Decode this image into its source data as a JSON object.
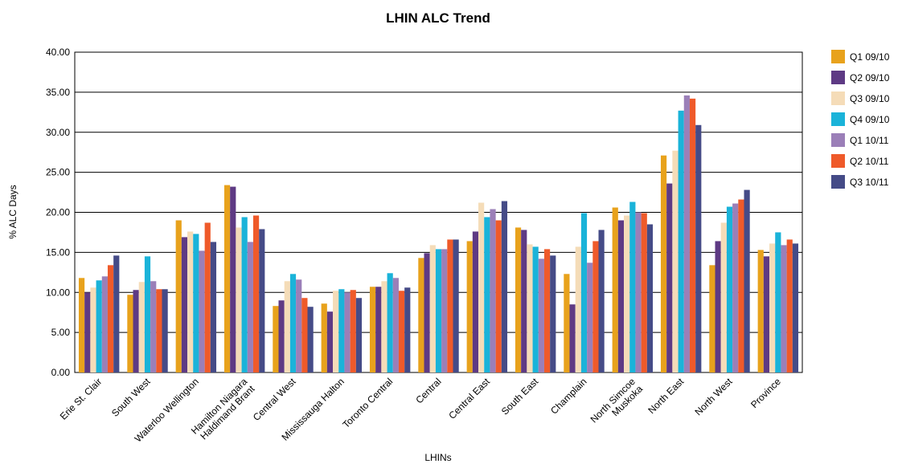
{
  "chart_data": {
    "type": "bar",
    "title": "LHIN ALC Trend",
    "x_label": "LHINs",
    "y_label": "% ALC Days",
    "categories": [
      "Erie St. Clair",
      "South West",
      "Waterloo Wellington",
      "Hamilton Niagara\nHaldimand Brant",
      "Central West",
      "Mississauga Halton",
      "Toronto Central",
      "Central",
      "Central East",
      "South East",
      "Champlain",
      "North Simcoe\nMuskoka",
      "North East",
      "North West",
      "Province"
    ],
    "series": [
      {
        "name": "Q1 09/10",
        "color": "#e8a21c",
        "values": [
          11.8,
          9.7,
          19.0,
          23.4,
          8.3,
          8.6,
          10.7,
          14.3,
          16.4,
          18.1,
          12.3,
          20.6,
          27.1,
          13.4,
          15.3
        ]
      },
      {
        "name": "Q2 09/10",
        "color": "#5e3a84",
        "values": [
          10.0,
          10.3,
          16.9,
          23.2,
          9.0,
          7.6,
          10.7,
          14.9,
          17.6,
          17.8,
          8.5,
          19.0,
          23.6,
          16.4,
          14.5
        ]
      },
      {
        "name": "Q3 09/10",
        "color": "#f5dcb8",
        "values": [
          10.6,
          11.3,
          17.6,
          18.1,
          11.4,
          10.2,
          11.4,
          15.9,
          21.2,
          16.0,
          15.7,
          19.6,
          27.7,
          18.7,
          16.1
        ]
      },
      {
        "name": "Q4 09/10",
        "color": "#1ab3d9",
        "values": [
          11.5,
          14.5,
          17.3,
          19.4,
          12.3,
          10.4,
          12.4,
          15.4,
          19.4,
          15.7,
          19.9,
          21.3,
          32.7,
          20.7,
          17.5
        ]
      },
      {
        "name": "Q1 10/11",
        "color": "#9b7fb8",
        "values": [
          12.0,
          11.4,
          15.2,
          16.3,
          11.6,
          10.0,
          11.8,
          15.4,
          20.4,
          14.2,
          13.7,
          20.0,
          34.6,
          21.1,
          15.9
        ]
      },
      {
        "name": "Q2 10/11",
        "color": "#ef5a2a",
        "values": [
          13.4,
          10.4,
          18.7,
          19.6,
          9.3,
          10.3,
          10.2,
          16.6,
          19.0,
          15.4,
          16.4,
          19.9,
          34.2,
          21.6,
          16.6
        ]
      },
      {
        "name": "Q3 10/11",
        "color": "#454b87",
        "values": [
          14.6,
          10.4,
          16.3,
          17.9,
          8.2,
          9.3,
          10.6,
          16.6,
          21.4,
          14.6,
          17.8,
          18.5,
          30.9,
          22.8,
          16.1
        ]
      }
    ],
    "ylim": [
      0,
      40
    ],
    "yticks": [
      {
        "value": 0,
        "label": "0.00"
      },
      {
        "value": 5,
        "label": "5.00"
      },
      {
        "value": 10,
        "label": "10.00"
      },
      {
        "value": 15,
        "label": "15.00"
      },
      {
        "value": 20,
        "label": "20.00"
      },
      {
        "value": 25,
        "label": "25.00"
      },
      {
        "value": 30,
        "label": "30.00"
      },
      {
        "value": 35,
        "label": "35.00"
      },
      {
        "value": 40,
        "label": "40.00"
      }
    ],
    "grid": true,
    "legend": "right"
  }
}
